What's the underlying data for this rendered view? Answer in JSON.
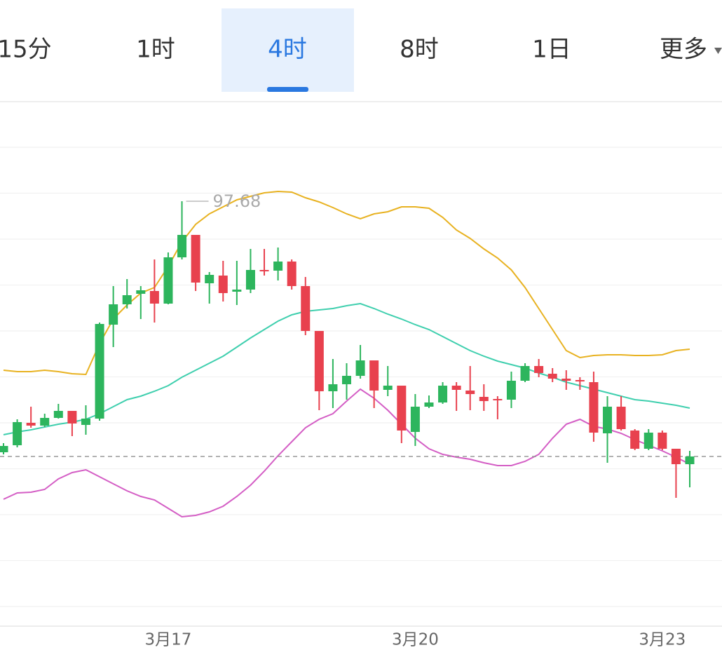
{
  "tabs": [
    "15分",
    "1时",
    "4时",
    "8时",
    "1日",
    "更多"
  ],
  "selected_tab": 2,
  "chart_data": {
    "type": "candlestick",
    "categories": [
      null,
      null,
      null,
      null,
      null,
      null,
      null,
      null,
      null,
      null,
      null,
      null,
      "3月17",
      null,
      null,
      null,
      null,
      null,
      null,
      null,
      null,
      null,
      null,
      null,
      null,
      null,
      null,
      null,
      null,
      null,
      "3月20",
      null,
      null,
      null,
      null,
      null,
      null,
      null,
      null,
      null,
      null,
      null,
      null,
      null,
      null,
      null,
      null,
      null,
      "3月23",
      null,
      null
    ],
    "open": [
      90.52,
      90.72,
      91.36,
      91.28,
      91.5,
      91.7,
      91.3,
      91.48,
      94.16,
      94.74,
      95.04,
      95.12,
      94.76,
      96.08,
      96.72,
      95.34,
      95.56,
      95.1,
      95.16,
      95.72,
      95.7,
      95.96,
      95.26,
      93.98,
      92.26,
      92.46,
      92.7,
      93.14,
      92.3,
      92.42,
      91.1,
      91.82,
      91.94,
      92.42,
      92.28,
      92.1,
      92.04,
      92.02,
      92.56,
      92.98,
      92.76,
      92.62,
      92.58,
      92.52,
      91.06,
      91.82,
      91.14,
      90.62,
      91.08,
      90.62,
      90.18
    ],
    "close": [
      90.7,
      91.38,
      91.28,
      91.5,
      91.7,
      91.34,
      91.48,
      94.18,
      94.74,
      95.0,
      95.14,
      94.76,
      96.08,
      96.72,
      95.36,
      95.58,
      95.06,
      95.16,
      95.72,
      95.7,
      95.96,
      95.26,
      93.98,
      92.26,
      92.46,
      92.7,
      93.14,
      92.28,
      92.42,
      91.14,
      91.82,
      91.94,
      92.42,
      92.3,
      92.18,
      91.98,
      92.02,
      92.56,
      92.98,
      92.78,
      92.62,
      92.56,
      92.56,
      91.08,
      91.82,
      91.18,
      90.62,
      91.08,
      90.62,
      90.18,
      90.4
    ],
    "high": [
      90.78,
      91.46,
      91.82,
      91.62,
      91.9,
      91.7,
      91.86,
      94.22,
      95.26,
      95.46,
      95.26,
      96.02,
      96.22,
      97.68,
      96.72,
      95.66,
      95.98,
      95.98,
      96.32,
      96.32,
      96.36,
      96.02,
      95.52,
      93.98,
      93.18,
      93.06,
      93.58,
      93.14,
      92.98,
      92.42,
      92.18,
      92.14,
      92.52,
      92.52,
      92.98,
      92.46,
      92.12,
      92.82,
      93.06,
      93.18,
      92.92,
      92.86,
      92.66,
      92.82,
      92.12,
      92.12,
      91.18,
      91.18,
      91.14,
      90.56,
      90.56
    ],
    "low": [
      90.46,
      90.66,
      91.22,
      91.24,
      91.48,
      90.98,
      91.02,
      91.42,
      93.52,
      94.62,
      94.32,
      94.22,
      94.74,
      96.02,
      95.12,
      94.76,
      94.82,
      94.72,
      95.06,
      95.56,
      95.42,
      95.16,
      93.86,
      91.72,
      91.78,
      92.02,
      92.62,
      91.78,
      92.12,
      90.78,
      90.7,
      91.78,
      91.9,
      91.7,
      91.72,
      91.7,
      91.46,
      91.78,
      92.52,
      92.66,
      92.52,
      92.3,
      92.3,
      90.82,
      90.22,
      91.14,
      90.58,
      90.58,
      90.58,
      89.22,
      89.52
    ],
    "up_color": "#2db55d",
    "down_color": "#e8414e",
    "series": [
      {
        "color": "#e8b221",
        "values": [
          92.86,
          92.82,
          92.82,
          92.86,
          92.82,
          92.76,
          92.74,
          93.62,
          94.32,
          94.72,
          95.06,
          95.22,
          95.82,
          96.52,
          97.02,
          97.32,
          97.52,
          97.72,
          97.82,
          97.92,
          97.96,
          97.94,
          97.78,
          97.66,
          97.5,
          97.32,
          97.18,
          97.32,
          97.38,
          97.52,
          97.52,
          97.48,
          97.22,
          96.86,
          96.62,
          96.32,
          96.06,
          95.72,
          95.22,
          94.62,
          94.02,
          93.42,
          93.22,
          93.28,
          93.3,
          93.3,
          93.28,
          93.28,
          93.3,
          93.42,
          93.46
        ]
      },
      {
        "color": "#3fcfae",
        "values": [
          91.02,
          91.1,
          91.16,
          91.24,
          91.32,
          91.38,
          91.46,
          91.62,
          91.82,
          92.02,
          92.12,
          92.26,
          92.42,
          92.66,
          92.86,
          93.06,
          93.26,
          93.52,
          93.78,
          94.02,
          94.26,
          94.44,
          94.54,
          94.58,
          94.62,
          94.7,
          94.76,
          94.62,
          94.46,
          94.32,
          94.16,
          94.02,
          93.82,
          93.62,
          93.42,
          93.26,
          93.12,
          93.02,
          92.92,
          92.78,
          92.66,
          92.52,
          92.42,
          92.32,
          92.22,
          92.12,
          92.02,
          91.98,
          91.92,
          91.86,
          91.78
        ]
      },
      {
        "color": "#d45ec5",
        "values": [
          89.18,
          89.36,
          89.38,
          89.46,
          89.76,
          89.94,
          90.02,
          89.82,
          89.62,
          89.42,
          89.26,
          89.16,
          88.92,
          88.68,
          88.72,
          88.82,
          88.98,
          89.26,
          89.58,
          89.98,
          90.42,
          90.82,
          91.22,
          91.46,
          91.62,
          91.98,
          92.32,
          92.06,
          91.72,
          91.32,
          90.92,
          90.62,
          90.46,
          90.38,
          90.32,
          90.22,
          90.14,
          90.14,
          90.26,
          90.46,
          90.92,
          91.32,
          91.46,
          91.26,
          91.18,
          91.06,
          90.88,
          90.72,
          90.56,
          90.38,
          90.18
        ]
      }
    ],
    "ylim": [
      85.56,
      100.52
    ],
    "max_index": 13
  }
}
